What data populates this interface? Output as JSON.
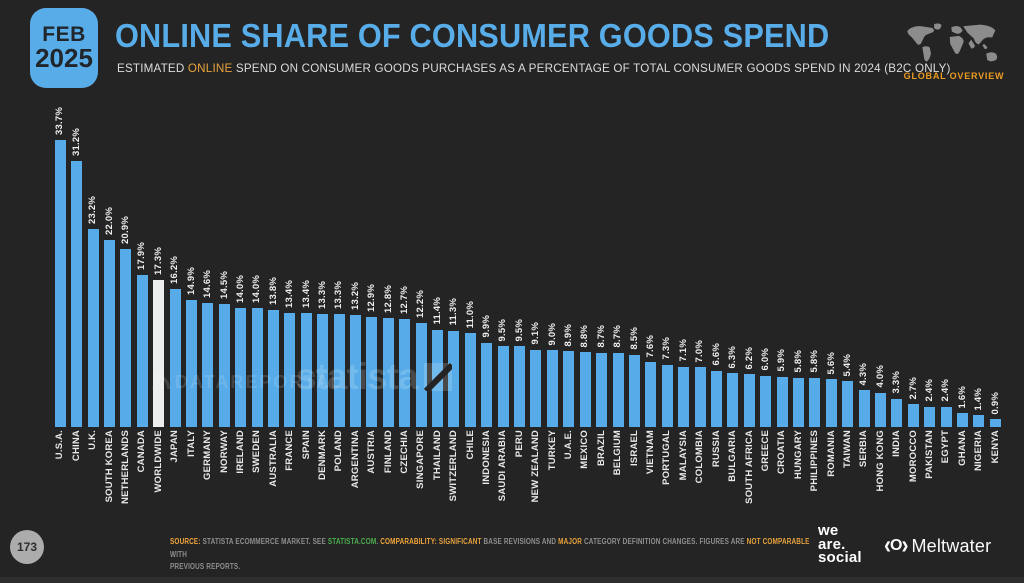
{
  "header": {
    "badge": {
      "month": "FEB",
      "year": "2025"
    },
    "title": "ONLINE SHARE OF CONSUMER GOODS SPEND",
    "subtitle_segments": [
      {
        "text": "ESTIMATED ",
        "style": "normal"
      },
      {
        "text": "ONLINE",
        "style": "orange"
      },
      {
        "text": " SPEND ON CONSUMER GOODS PURCHASES AS A PERCENTAGE OF TOTAL CONSUMER GOODS SPEND IN 2024 (B2C ONLY)",
        "style": "normal"
      }
    ],
    "overview_label": "GLOBAL OVERVIEW"
  },
  "chart_data": {
    "type": "bar",
    "title": "Online share of consumer goods spend",
    "unit": "%",
    "ylim": [
      0,
      33.7
    ],
    "grid": false,
    "legend": "none",
    "bar_color": "#56ABE8",
    "highlight_category": "WORLDWIDE",
    "highlight_color": "#EDEDED",
    "categories": [
      "U.S.A.",
      "CHINA",
      "U.K.",
      "SOUTH KOREA",
      "NETHERLANDS",
      "CANADA",
      "WORLDWIDE",
      "JAPAN",
      "ITALY",
      "GERMANY",
      "NORWAY",
      "IRELAND",
      "SWEDEN",
      "AUSTRALIA",
      "FRANCE",
      "SPAIN",
      "DENMARK",
      "POLAND",
      "ARGENTINA",
      "AUSTRIA",
      "FINLAND",
      "CZECHIA",
      "SINGAPORE",
      "THAILAND",
      "SWITZERLAND",
      "CHILE",
      "INDONESIA",
      "SAUDI ARABIA",
      "PERU",
      "NEW ZEALAND",
      "TURKEY",
      "U.A.E.",
      "MEXICO",
      "BRAZIL",
      "BELGIUM",
      "ISRAEL",
      "VIETNAM",
      "PORTUGAL",
      "MALAYSIA",
      "COLOMBIA",
      "RUSSIA",
      "BULGARIA",
      "SOUTH AFRICA",
      "GREECE",
      "CROATIA",
      "HUNGARY",
      "PHILIPPINES",
      "ROMANIA",
      "TAIWAN",
      "SERBIA",
      "HONG KONG",
      "INDIA",
      "MOROCCO",
      "PAKISTAN",
      "EGYPT",
      "GHANA",
      "NIGERIA",
      "KENYA"
    ],
    "values": [
      33.7,
      31.2,
      23.2,
      22.0,
      20.9,
      17.9,
      17.3,
      16.2,
      14.9,
      14.6,
      14.5,
      14.0,
      14.0,
      13.8,
      13.4,
      13.4,
      13.3,
      13.3,
      13.2,
      12.9,
      12.8,
      12.7,
      12.2,
      11.4,
      11.3,
      11.0,
      9.9,
      9.5,
      9.5,
      9.1,
      9.0,
      8.9,
      8.8,
      8.7,
      8.7,
      8.5,
      7.6,
      7.3,
      7.1,
      7.0,
      6.6,
      6.3,
      6.2,
      6.0,
      5.9,
      5.8,
      5.8,
      5.6,
      5.4,
      4.3,
      4.0,
      3.3,
      2.7,
      2.4,
      2.4,
      1.6,
      1.4,
      0.9
    ]
  },
  "watermarks": {
    "datareportal": "DATAREPORTAL",
    "statista": "statista"
  },
  "footer": {
    "page_number": "173",
    "source_segments": [
      {
        "text": "SOURCE: ",
        "style": "orange-bold"
      },
      {
        "text": "STATISTA ECOMMERCE MARKET. SEE ",
        "style": "gray"
      },
      {
        "text": "STATISTA.COM",
        "style": "green"
      },
      {
        "text": ". ",
        "style": "gray"
      },
      {
        "text": "COMPARABILITY: ",
        "style": "orange-bold"
      },
      {
        "text": "SIGNIFICANT",
        "style": "orange"
      },
      {
        "text": " BASE REVISIONS AND ",
        "style": "gray"
      },
      {
        "text": "MAJOR",
        "style": "orange"
      },
      {
        "text": " CATEGORY DEFINITION CHANGES. FIGURES ARE ",
        "style": "gray"
      },
      {
        "text": "NOT COMPARABLE",
        "style": "orange"
      },
      {
        "text": " WITH",
        "style": "gray"
      },
      {
        "text": "PREVIOUS REPORTS.",
        "style": "gray",
        "break": true
      }
    ],
    "brand_we_are_social_lines": [
      "we",
      "are.",
      "social"
    ],
    "brand_meltwater": "Meltwater"
  },
  "colors": {
    "background": "#242424",
    "accent_blue": "#58ADE9",
    "bar_blue": "#56ABE8",
    "highlight_bar": "#EDEDED",
    "orange": "#E8A33D",
    "green": "#4CAF50",
    "footer_gray": "#8F8F8F"
  }
}
